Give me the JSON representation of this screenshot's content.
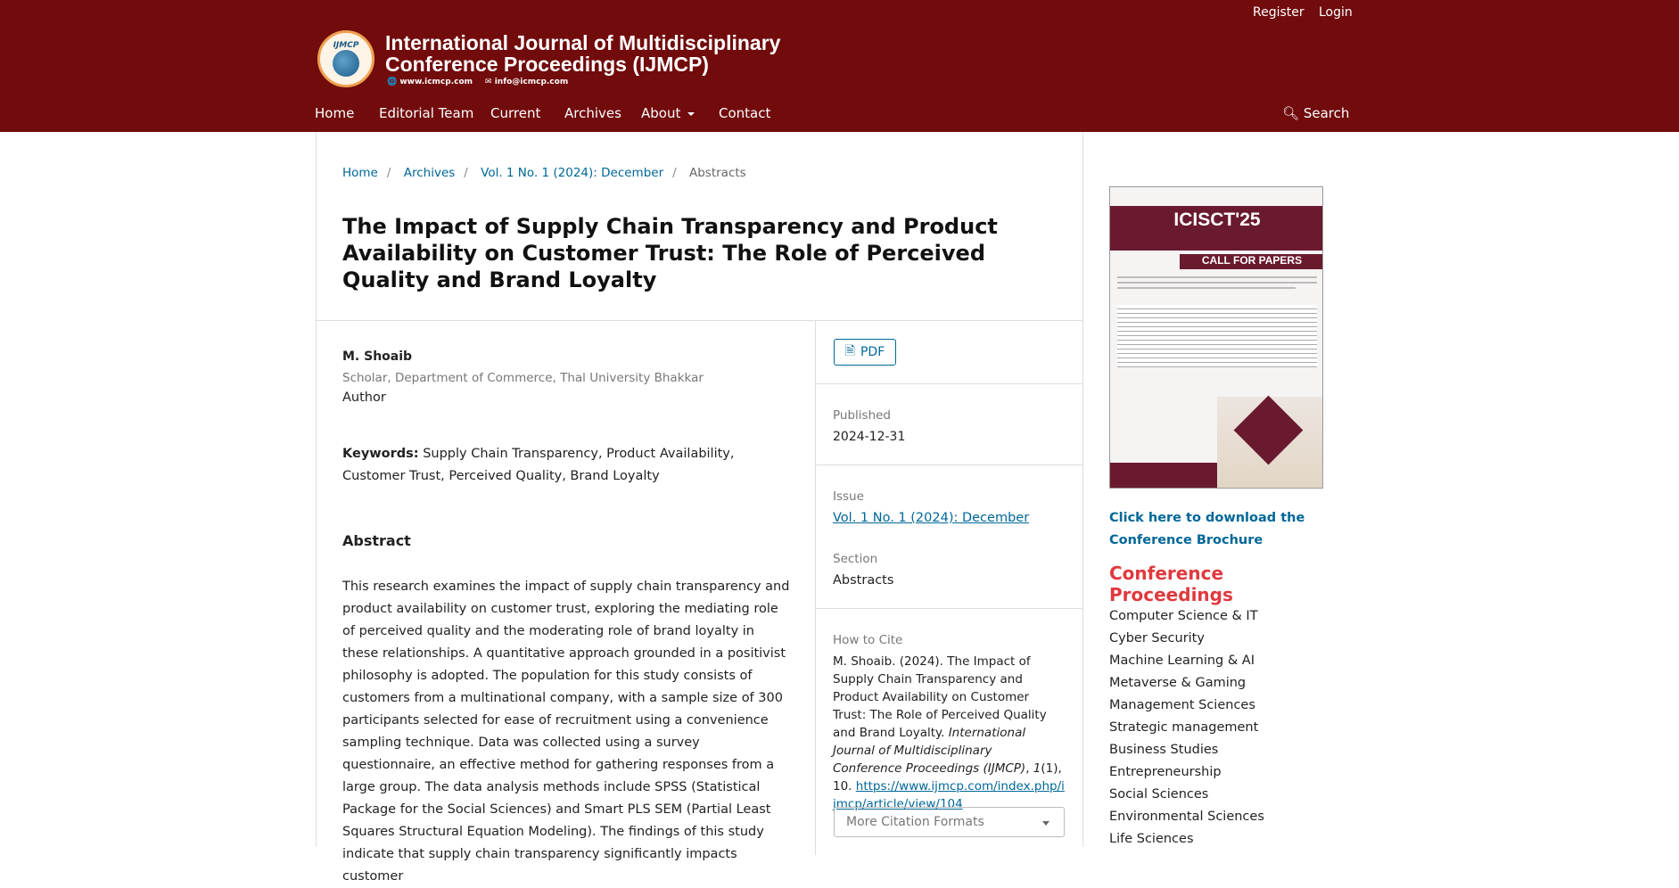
{
  "header": {
    "register": "Register",
    "login": "Login",
    "title_line1": "International Journal of Multidisciplinary",
    "title_line2": "Conference Proceedings (IJMCP)",
    "logo_text": "IJMCP",
    "website": "www.icmcp.com",
    "email": "info@icmcp.com",
    "brand_color": "#710b0c"
  },
  "nav": {
    "items": [
      "Home",
      "Editorial Team",
      "Current",
      "Archives",
      "About",
      "Contact"
    ],
    "search": "Search"
  },
  "breadcrumb": [
    "Home",
    "Archives",
    "Vol. 1 No. 1 (2024): December",
    "Abstracts"
  ],
  "article": {
    "title": "The Impact of Supply Chain Transparency and Product Availability on Customer Trust: The Role of Perceived Quality and Brand Loyalty",
    "author": "M. Shoaib",
    "affiliation": "Scholar, Department of Commerce, Thal University Bhakkar",
    "role": "Author",
    "keywords_label": "Keywords:",
    "keywords": "Supply Chain Transparency, Product Availability, Customer Trust, Perceived Quality, Brand Loyalty",
    "abstract_heading": "Abstract",
    "abstract": "This research examines the impact of supply chain transparency and product availability on customer trust, exploring the mediating role of perceived quality and the moderating role of brand loyalty in these relationships. A quantitative approach grounded in a positivist philosophy is adopted. The population for this study consists of customers from a multinational company, with a sample size of 300 participants selected for ease of recruitment using a convenience sampling technique. Data was collected using a survey questionnaire, an effective method for gathering responses from a large group. The data analysis methods include SPSS (Statistical Package for the Social Sciences) and Smart PLS SEM (Partial Least Squares Structural Equation Modeling). The findings of this study indicate that supply chain transparency significantly impacts customer"
  },
  "details": {
    "pdf": "PDF",
    "published_label": "Published",
    "published": "2024-12-31",
    "issue_label": "Issue",
    "issue": "Vol. 1 No. 1 (2024): December",
    "section_label": "Section",
    "section": "Abstracts",
    "cite_label": "How to Cite",
    "cite_text": "M. Shoaib. (2024). The Impact of Supply Chain Transparency and Product Availability on Customer Trust: The Role of Perceived Quality and Brand Loyalty. ",
    "cite_journal": "International Journal of Multidisciplinary Conference Proceedings (IJMCP)",
    "cite_sep": ", ",
    "cite_vol": "1",
    "cite_rest": "(1), 10.",
    "cite_url": "https://www.ijmcp.com/index.php/ijmcp/article/view/104",
    "formats": "More Citation Formats"
  },
  "sidebar": {
    "poster": {
      "title": "ICISCT'25",
      "subtitle": "CALL FOR PAPERS"
    },
    "brochure": "Click here to download the Conference Brochure",
    "proceedings_heading": "Conference Proceedings",
    "proceedings": [
      "Computer Science & IT",
      "Cyber Security",
      "Machine Learning & AI",
      "Metaverse & Gaming",
      "Management Sciences",
      "Strategic management",
      "Business Studies",
      "Entrepreneurship",
      "Social Sciences",
      "Environmental Sciences",
      "Life Sciences"
    ]
  }
}
